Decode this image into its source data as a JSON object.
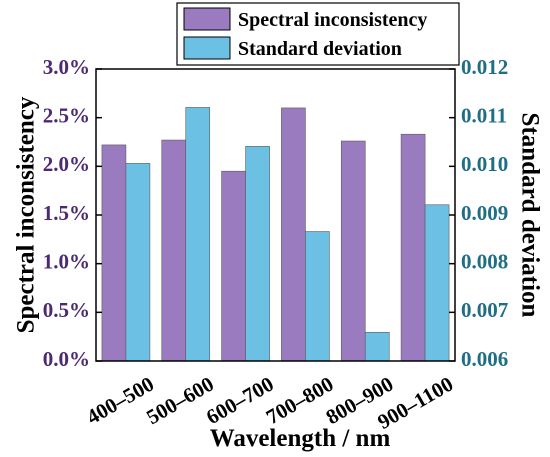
{
  "chart_data": {
    "type": "bar",
    "categories": [
      "400–500",
      "500–600",
      "600–700",
      "700–800",
      "800–900",
      "900–1100"
    ],
    "xlabel": "Wavelength / nm",
    "series": [
      {
        "name": "Spectral inconsistency",
        "axis": "left",
        "color": "#9b7bc0",
        "values": [
          2.22,
          2.27,
          1.95,
          2.6,
          2.26,
          2.33
        ]
      },
      {
        "name": "Standard deviation",
        "axis": "right",
        "color": "#6cc0e3",
        "values": [
          0.01006,
          0.01121,
          0.01041,
          0.00866,
          0.00659,
          0.00921
        ]
      }
    ],
    "y_left": {
      "label": "Spectral inconsistency",
      "range": [
        0,
        3.0
      ],
      "ticks": [
        0,
        0.5,
        1.0,
        1.5,
        2.0,
        2.5,
        3.0
      ],
      "tick_labels": [
        "0.0%",
        "0.5%",
        "1.0%",
        "1.5%",
        "2.0%",
        "2.5%",
        "3.0%"
      ],
      "color": "#4b2a72"
    },
    "y_right": {
      "label": "Standard deviation",
      "range": [
        0.006,
        0.012
      ],
      "ticks": [
        0.006,
        0.007,
        0.008,
        0.009,
        0.01,
        0.011,
        0.012
      ],
      "tick_labels": [
        "0.006",
        "0.007",
        "0.008",
        "0.009",
        "0.010",
        "0.011",
        "0.012"
      ],
      "color": "#1f6e86"
    },
    "grid": false,
    "legend": "top-right"
  }
}
